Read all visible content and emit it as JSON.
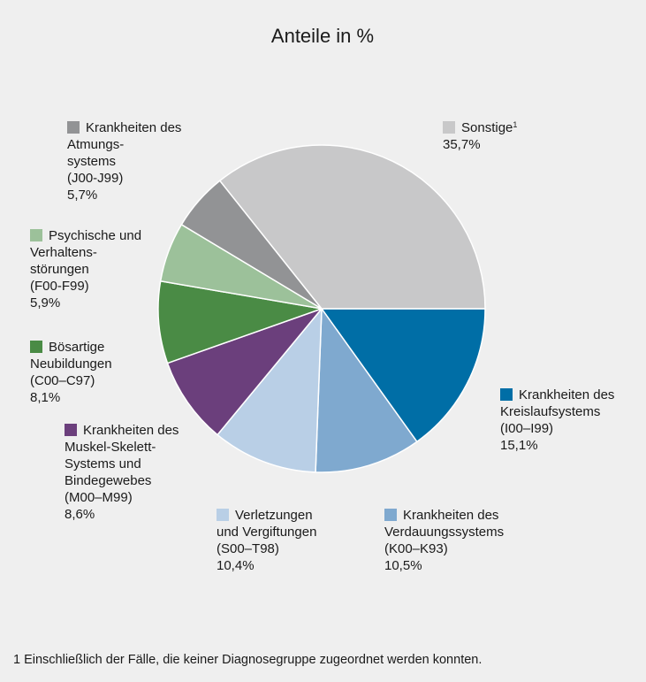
{
  "chart_data": {
    "type": "pie",
    "title": "Anteile in %",
    "footnote": "1 Einschließlich der Fälle, die keiner Diagnosegruppe zugeordnet werden konnten.",
    "slices": [
      {
        "label": [
          "Sonstige"
        ],
        "superscript": "1",
        "value": 35.7,
        "value_label": "35,7%",
        "color": "#c8c8c9"
      },
      {
        "label": [
          "Krankheiten des",
          "Kreislaufsystems",
          "(I00–I99)"
        ],
        "value": 15.1,
        "value_label": "15,1%",
        "color": "#006ea6"
      },
      {
        "label": [
          "Krankheiten des",
          "Verdauungssystems",
          "(K00–K93)"
        ],
        "value": 10.5,
        "value_label": "10,5%",
        "color": "#7fa9cf"
      },
      {
        "label": [
          "Verletzungen",
          "und Vergiftungen",
          "(S00–T98)"
        ],
        "value": 10.4,
        "value_label": "10,4%",
        "color": "#b9cfe6"
      },
      {
        "label": [
          "Krankheiten des",
          "Muskel-Skelett-",
          "Systems und",
          "Bindegewebes",
          "(M00–M99)"
        ],
        "value": 8.6,
        "value_label": "8,6%",
        "color": "#6b3f7c"
      },
      {
        "label": [
          "Bösartige",
          "Neubildungen",
          "(C00–C97)"
        ],
        "value": 8.1,
        "value_label": "8,1%",
        "color": "#4a8b45"
      },
      {
        "label": [
          "Psychische und",
          "Verhaltens-",
          "störungen",
          "(F00-F99)"
        ],
        "value": 5.9,
        "value_label": "5,9%",
        "color": "#9cc19a"
      },
      {
        "label": [
          "Krankheiten des",
          "Atmungs-",
          "systems",
          "(J00-J99)"
        ],
        "value": 5.7,
        "value_label": "5,7%",
        "color": "#929395"
      }
    ]
  }
}
